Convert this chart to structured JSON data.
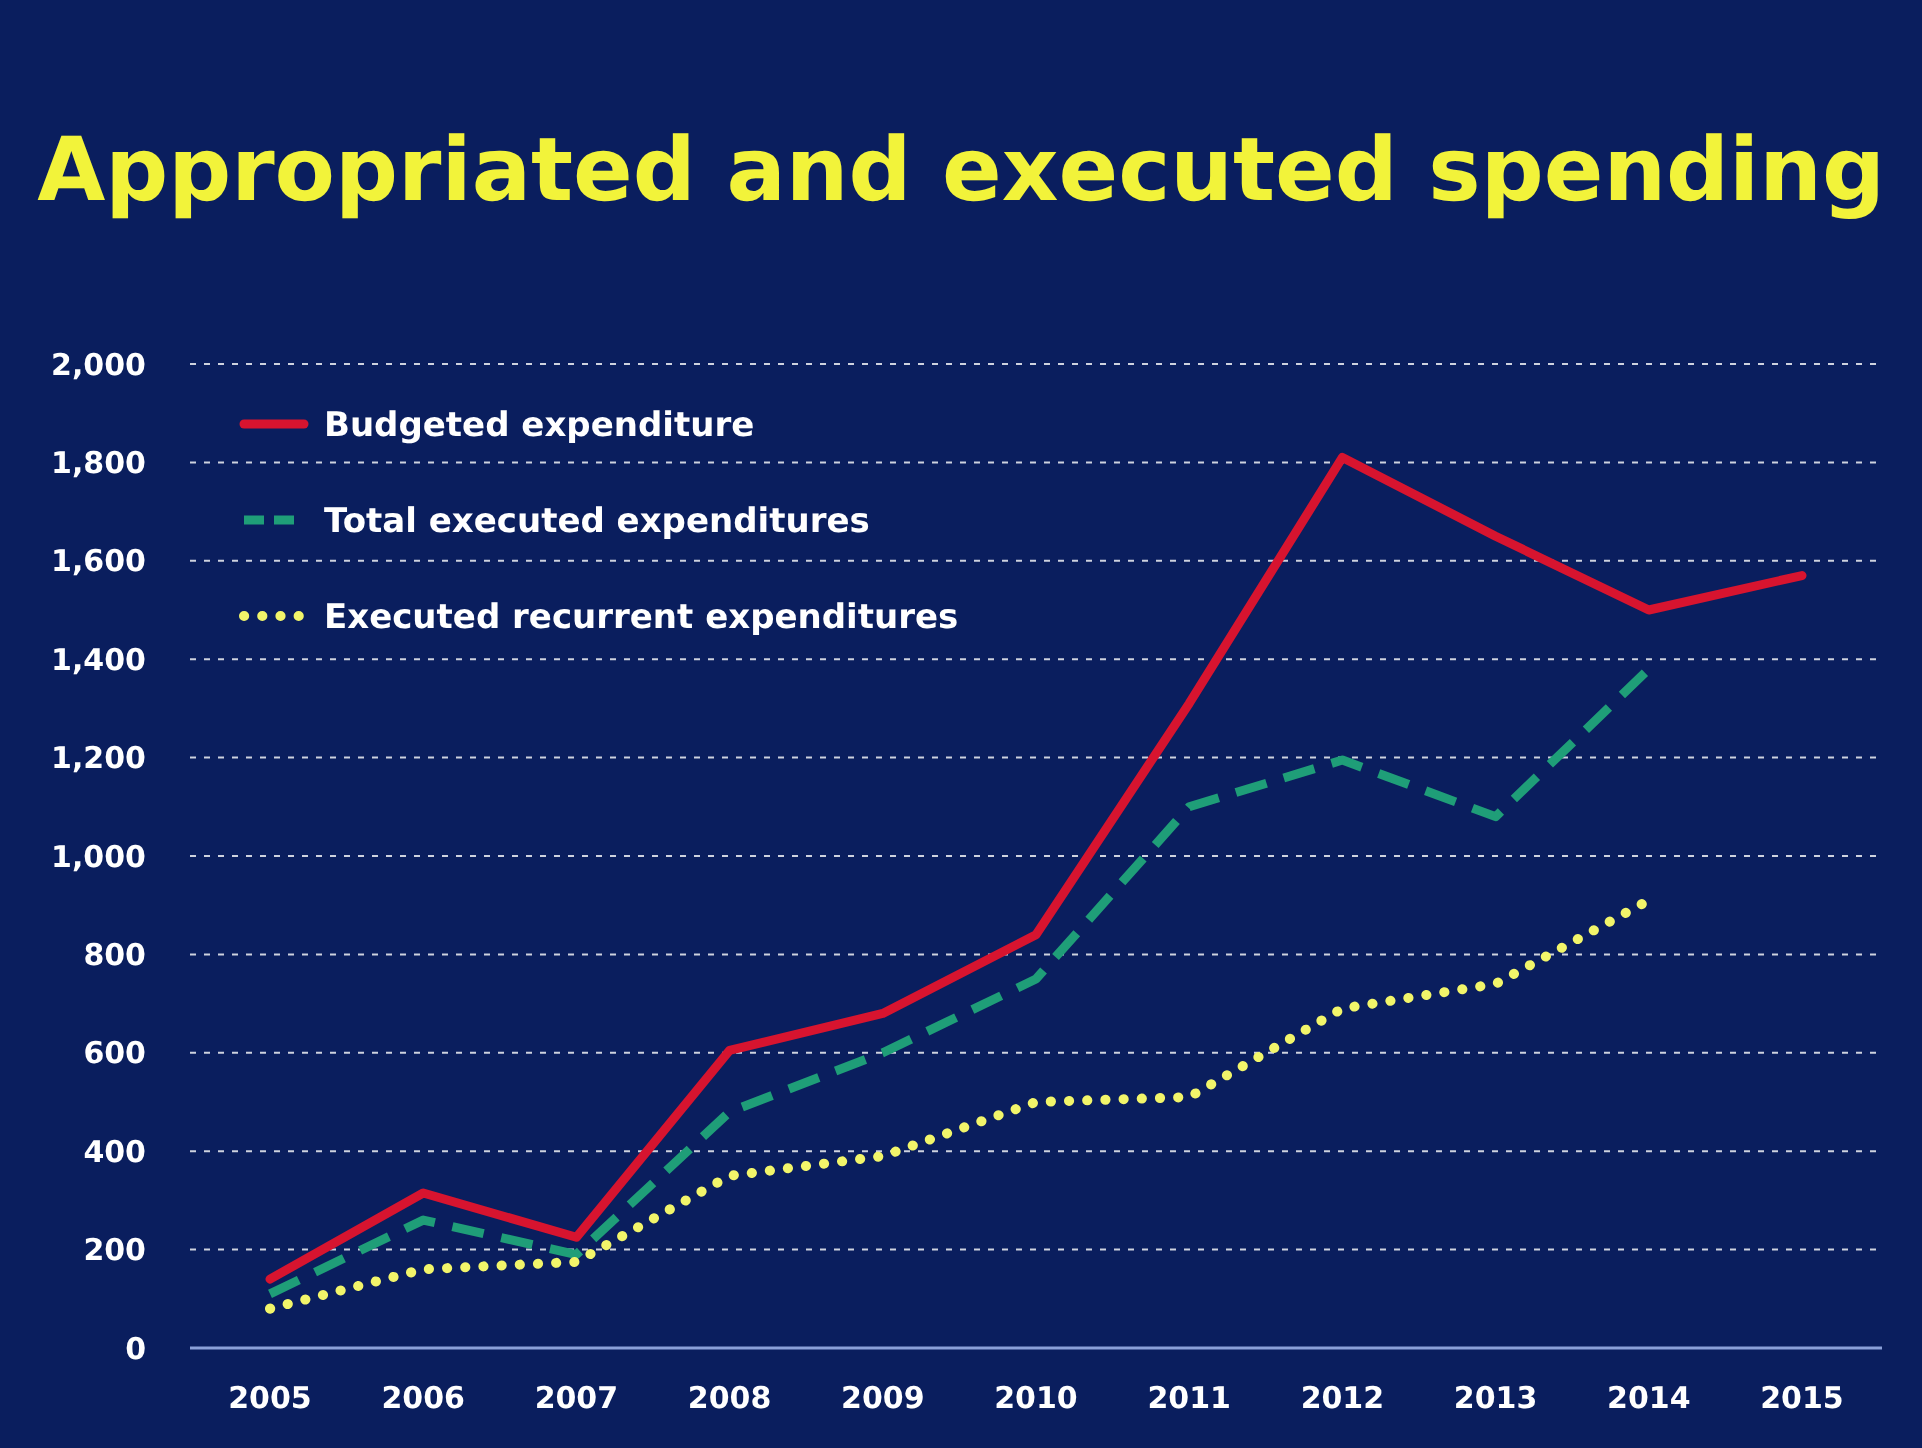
{
  "chart_data": {
    "type": "line",
    "title": "Appropriated and executed spending",
    "categories": [
      "2005",
      "2006",
      "2007",
      "2008",
      "2009",
      "2010",
      "2011",
      "2012",
      "2013",
      "2014",
      "2015"
    ],
    "series": [
      {
        "name": "Budgeted expenditure",
        "color": "#d7142f",
        "line_style": "solid",
        "values": [
          140,
          315,
          225,
          605,
          680,
          840,
          1310,
          1810,
          1650,
          1500,
          1570
        ]
      },
      {
        "name": "Total executed expenditures",
        "color": "#1f9e78",
        "line_style": "dashed",
        "values": [
          110,
          260,
          190,
          480,
          600,
          750,
          1100,
          1195,
          1080,
          1380,
          null
        ]
      },
      {
        "name": "Executed recurrent expenditures",
        "color": "#f2f56a",
        "line_style": "dotted",
        "values": [
          80,
          160,
          175,
          350,
          390,
          500,
          510,
          690,
          740,
          910,
          null
        ]
      }
    ],
    "ylim": [
      0,
      2000
    ],
    "yticks": [
      {
        "value": 0,
        "label": "0"
      },
      {
        "value": 200,
        "label": "200"
      },
      {
        "value": 400,
        "label": "400"
      },
      {
        "value": 600,
        "label": "600"
      },
      {
        "value": 800,
        "label": "800"
      },
      {
        "value": 1000,
        "label": "1,000"
      },
      {
        "value": 1200,
        "label": "1,200"
      },
      {
        "value": 1400,
        "label": "1,400"
      },
      {
        "value": 1600,
        "label": "1,600"
      },
      {
        "value": 1800,
        "label": "1,800"
      },
      {
        "value": 2000,
        "label": "2,000"
      }
    ],
    "grid": "y",
    "legend": "top left",
    "marker": "none"
  }
}
